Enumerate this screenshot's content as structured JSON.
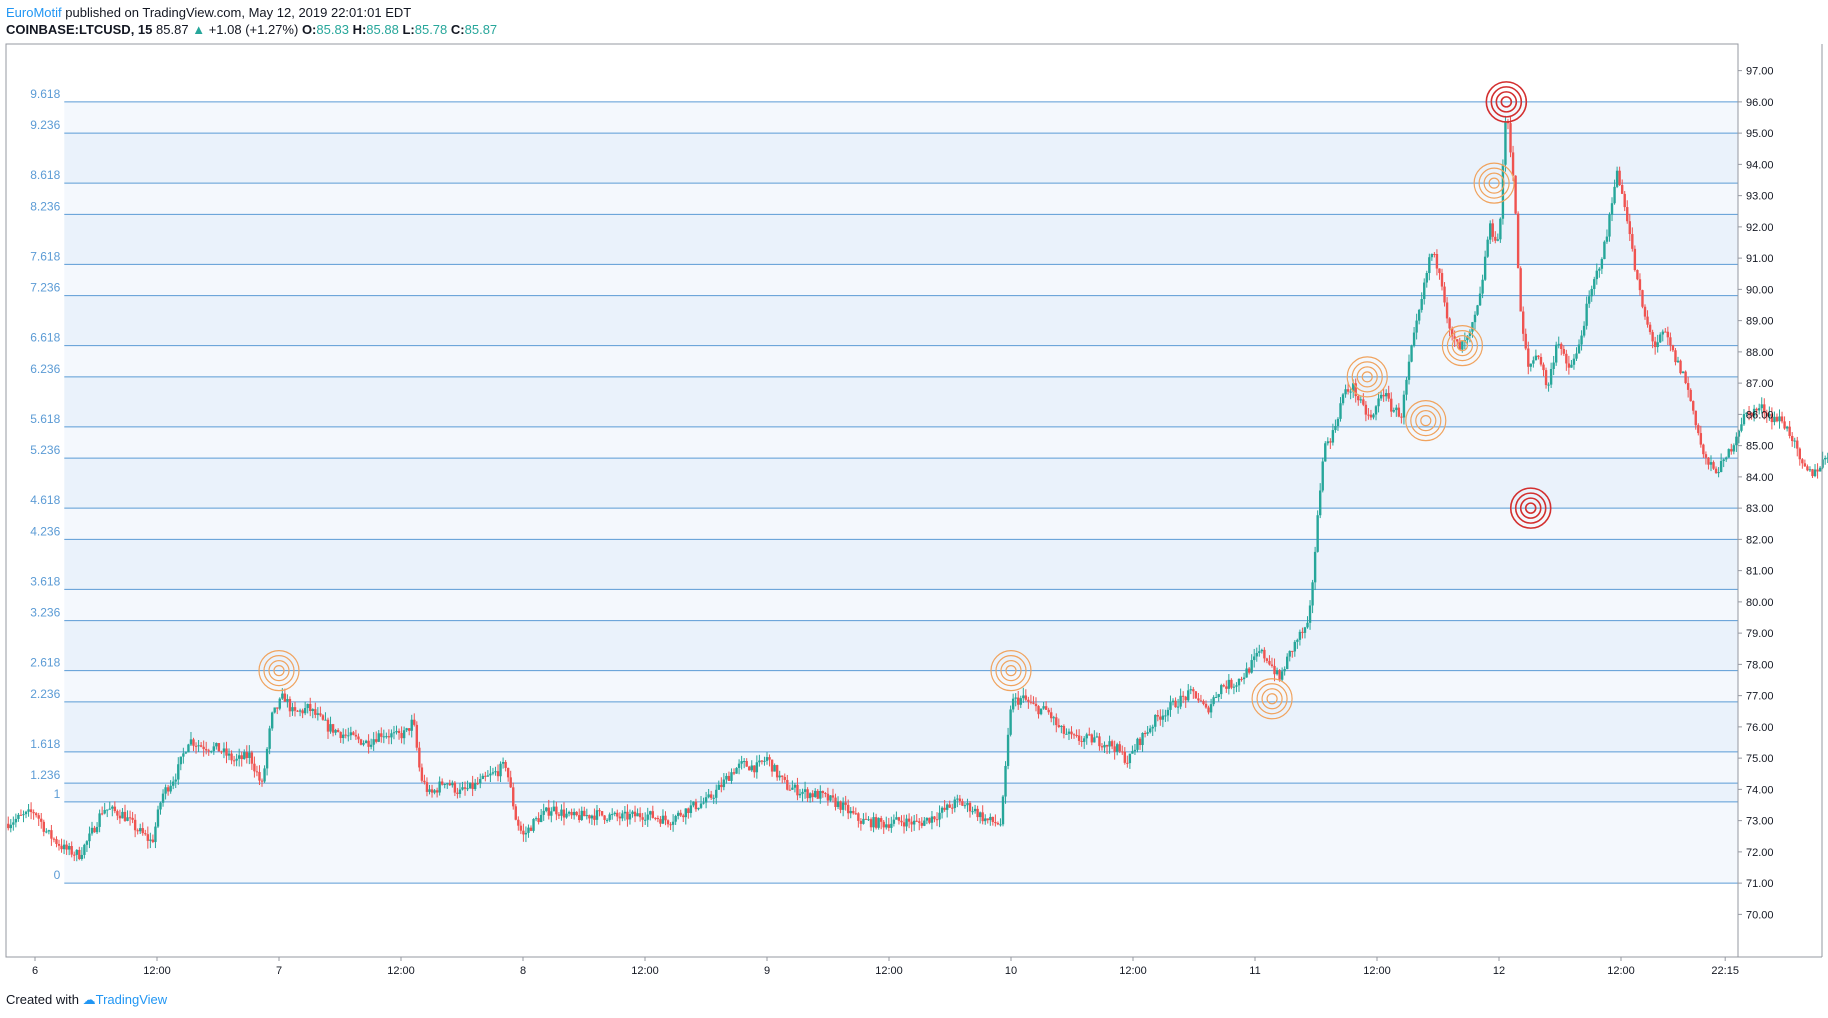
{
  "header": {
    "author": "EuroMotif",
    "published_text": "published on TradingView.com, May 12, 2019 22:01:01 EDT",
    "symbol": "COINBASE:LTCUSD, 15",
    "last": "85.87",
    "change": "+1.08 (+1.27%)",
    "o_label": "O:",
    "o_value": "85.83",
    "h_label": "H:",
    "h_value": "85.88",
    "l_label": "L:",
    "l_value": "85.78",
    "c_label": "C:",
    "c_value": "85.87"
  },
  "footer": {
    "created_with": "Created with",
    "brand": "TradingView"
  },
  "colors": {
    "up": "#26a69a",
    "down": "#ef5350",
    "fib_line": "#5b9bd5",
    "fib_band": "#eaf2fb",
    "target_red": "#d32f2f",
    "target_orange": "#f0a35e"
  },
  "chart_data": {
    "type": "candlestick",
    "y_range": [
      69.5,
      97.5
    ],
    "y_ticks": [
      "97.00",
      "96.00",
      "95.00",
      "94.00",
      "93.00",
      "92.00",
      "91.00",
      "90.00",
      "89.00",
      "88.00",
      "87.00",
      "86.00",
      "85.00",
      "84.00",
      "83.00",
      "82.00",
      "81.00",
      "80.00",
      "79.00",
      "78.00",
      "77.00",
      "76.00",
      "75.00",
      "74.00",
      "73.00",
      "72.00",
      "71.00",
      "70.00"
    ],
    "x_range_days": [
      -0.12,
      7.2
    ],
    "x_ticks": [
      {
        "t": 0.0,
        "label": "6"
      },
      {
        "t": 0.5,
        "label": "12:00"
      },
      {
        "t": 1.0,
        "label": "7"
      },
      {
        "t": 1.5,
        "label": "12:00"
      },
      {
        "t": 2.0,
        "label": "8"
      },
      {
        "t": 2.5,
        "label": "12:00"
      },
      {
        "t": 3.0,
        "label": "9"
      },
      {
        "t": 3.5,
        "label": "12:00"
      },
      {
        "t": 4.0,
        "label": "10"
      },
      {
        "t": 4.5,
        "label": "12:00"
      },
      {
        "t": 5.0,
        "label": "11"
      },
      {
        "t": 5.5,
        "label": "12:00"
      },
      {
        "t": 6.0,
        "label": "12"
      },
      {
        "t": 6.5,
        "label": "12:00"
      },
      {
        "t": 6.927,
        "label": "22:15"
      }
    ],
    "fib_levels": [
      {
        "label": "0",
        "price": 71.0
      },
      {
        "label": "1",
        "price": 73.6
      },
      {
        "label": "1.236",
        "price": 74.2
      },
      {
        "label": "1.618",
        "price": 75.2
      },
      {
        "label": "2.236",
        "price": 76.8
      },
      {
        "label": "2.618",
        "price": 77.8
      },
      {
        "label": "3.236",
        "price": 79.4
      },
      {
        "label": "3.618",
        "price": 80.4
      },
      {
        "label": "4.236",
        "price": 82.0
      },
      {
        "label": "4.618",
        "price": 83.0
      },
      {
        "label": "5.236",
        "price": 84.6
      },
      {
        "label": "5.618",
        "price": 85.6
      },
      {
        "label": "6.236",
        "price": 87.2
      },
      {
        "label": "6.618",
        "price": 88.2
      },
      {
        "label": "7.236",
        "price": 89.8
      },
      {
        "label": "7.618",
        "price": 90.8
      },
      {
        "label": "8.236",
        "price": 92.4
      },
      {
        "label": "8.618",
        "price": 93.4
      },
      {
        "label": "9.236",
        "price": 95.0
      },
      {
        "label": "9.618",
        "price": 96.0
      }
    ],
    "path": [
      [
        -0.12,
        72.9
      ],
      [
        0.0,
        73.3
      ],
      [
        0.05,
        72.6
      ],
      [
        0.12,
        72.1
      ],
      [
        0.18,
        71.9
      ],
      [
        0.22,
        72.4
      ],
      [
        0.28,
        73.4
      ],
      [
        0.36,
        73.2
      ],
      [
        0.42,
        72.7
      ],
      [
        0.48,
        72.3
      ],
      [
        0.52,
        73.8
      ],
      [
        0.58,
        74.5
      ],
      [
        0.63,
        75.6
      ],
      [
        0.68,
        75.4
      ],
      [
        0.75,
        75.3
      ],
      [
        0.82,
        74.9
      ],
      [
        0.88,
        75.1
      ],
      [
        0.93,
        74.1
      ],
      [
        0.97,
        76.3
      ],
      [
        1.02,
        77.0
      ],
      [
        1.06,
        76.4
      ],
      [
        1.12,
        76.6
      ],
      [
        1.2,
        76.0
      ],
      [
        1.28,
        75.7
      ],
      [
        1.36,
        75.5
      ],
      [
        1.42,
        75.8
      ],
      [
        1.48,
        75.7
      ],
      [
        1.52,
        75.8
      ],
      [
        1.55,
        76.2
      ],
      [
        1.58,
        74.4
      ],
      [
        1.62,
        73.8
      ],
      [
        1.68,
        74.3
      ],
      [
        1.74,
        73.9
      ],
      [
        1.8,
        74.1
      ],
      [
        1.86,
        74.4
      ],
      [
        1.9,
        74.6
      ],
      [
        1.93,
        74.8
      ],
      [
        1.97,
        73.1
      ],
      [
        2.0,
        72.5
      ],
      [
        2.05,
        73.0
      ],
      [
        2.12,
        73.4
      ],
      [
        2.2,
        73.1
      ],
      [
        2.3,
        73.2
      ],
      [
        2.4,
        73.1
      ],
      [
        2.5,
        73.2
      ],
      [
        2.6,
        73.0
      ],
      [
        2.68,
        73.4
      ],
      [
        2.75,
        73.6
      ],
      [
        2.8,
        74.0
      ],
      [
        2.86,
        74.6
      ],
      [
        2.9,
        74.8
      ],
      [
        2.96,
        74.7
      ],
      [
        3.0,
        75.0
      ],
      [
        3.04,
        74.5
      ],
      [
        3.08,
        74.1
      ],
      [
        3.15,
        73.9
      ],
      [
        3.22,
        73.8
      ],
      [
        3.3,
        73.5
      ],
      [
        3.38,
        73.0
      ],
      [
        3.48,
        72.9
      ],
      [
        3.55,
        73.0
      ],
      [
        3.62,
        72.9
      ],
      [
        3.7,
        73.2
      ],
      [
        3.78,
        73.6
      ],
      [
        3.84,
        73.4
      ],
      [
        3.9,
        73.0
      ],
      [
        3.96,
        72.9
      ],
      [
        4.0,
        76.8
      ],
      [
        4.05,
        76.9
      ],
      [
        4.1,
        76.6
      ],
      [
        4.15,
        76.5
      ],
      [
        4.2,
        75.9
      ],
      [
        4.26,
        75.6
      ],
      [
        4.34,
        75.6
      ],
      [
        4.42,
        75.4
      ],
      [
        4.48,
        74.9
      ],
      [
        4.52,
        75.5
      ],
      [
        4.6,
        76.3
      ],
      [
        4.68,
        76.8
      ],
      [
        4.75,
        77.1
      ],
      [
        4.8,
        76.5
      ],
      [
        4.86,
        77.3
      ],
      [
        4.92,
        77.4
      ],
      [
        4.97,
        77.8
      ],
      [
        5.02,
        78.4
      ],
      [
        5.06,
        78.1
      ],
      [
        5.1,
        77.5
      ],
      [
        5.14,
        78.3
      ],
      [
        5.18,
        78.9
      ],
      [
        5.22,
        79.2
      ],
      [
        5.25,
        82.0
      ],
      [
        5.28,
        84.9
      ],
      [
        5.32,
        85.4
      ],
      [
        5.36,
        86.6
      ],
      [
        5.4,
        86.9
      ],
      [
        5.44,
        86.2
      ],
      [
        5.48,
        85.8
      ],
      [
        5.52,
        86.8
      ],
      [
        5.56,
        86.2
      ],
      [
        5.6,
        86.0
      ],
      [
        5.64,
        88.0
      ],
      [
        5.68,
        89.5
      ],
      [
        5.72,
        91.2
      ],
      [
        5.76,
        90.6
      ],
      [
        5.8,
        88.5
      ],
      [
        5.84,
        88.1
      ],
      [
        5.88,
        88.5
      ],
      [
        5.92,
        89.6
      ],
      [
        5.96,
        92.0
      ],
      [
        6.0,
        91.5
      ],
      [
        6.03,
        95.9
      ],
      [
        6.06,
        93.5
      ],
      [
        6.09,
        89.0
      ],
      [
        6.12,
        87.5
      ],
      [
        6.16,
        88.0
      ],
      [
        6.2,
        86.8
      ],
      [
        6.24,
        88.5
      ],
      [
        6.28,
        87.4
      ],
      [
        6.32,
        87.9
      ],
      [
        6.36,
        89.4
      ],
      [
        6.4,
        90.5
      ],
      [
        6.44,
        91.6
      ],
      [
        6.48,
        93.8
      ],
      [
        6.52,
        92.6
      ],
      [
        6.56,
        90.5
      ],
      [
        6.6,
        89.0
      ],
      [
        6.64,
        88.2
      ],
      [
        6.68,
        88.6
      ],
      [
        6.72,
        87.8
      ],
      [
        6.76,
        87.2
      ],
      [
        6.8,
        86.0
      ],
      [
        6.84,
        84.6
      ],
      [
        6.88,
        84.2
      ],
      [
        6.92,
        84.4
      ],
      [
        6.96,
        85.1
      ],
      [
        7.0,
        85.9
      ],
      [
        7.04,
        86.1
      ],
      [
        7.08,
        86.2
      ],
      [
        7.12,
        85.9
      ],
      [
        7.16,
        85.8
      ],
      [
        7.2,
        85.3
      ],
      [
        7.24,
        84.3
      ],
      [
        7.28,
        84.1
      ],
      [
        7.32,
        84.4
      ],
      [
        7.36,
        84.9
      ],
      [
        7.4,
        86.0
      ],
      [
        7.44,
        86.4
      ],
      [
        7.48,
        85.87
      ]
    ],
    "targets": [
      {
        "t": 6.03,
        "price": 96.0,
        "style": "red"
      },
      {
        "t": 6.13,
        "price": 83.0,
        "style": "red"
      },
      {
        "t": 5.98,
        "price": 93.4,
        "style": "orange"
      },
      {
        "t": 5.85,
        "price": 88.2,
        "style": "orange"
      },
      {
        "t": 5.46,
        "price": 87.2,
        "style": "orange"
      },
      {
        "t": 5.7,
        "price": 85.8,
        "style": "orange"
      },
      {
        "t": 1.0,
        "price": 77.8,
        "style": "orange"
      },
      {
        "t": 4.0,
        "price": 77.8,
        "style": "orange"
      },
      {
        "t": 5.07,
        "price": 76.9,
        "style": "orange"
      }
    ]
  }
}
